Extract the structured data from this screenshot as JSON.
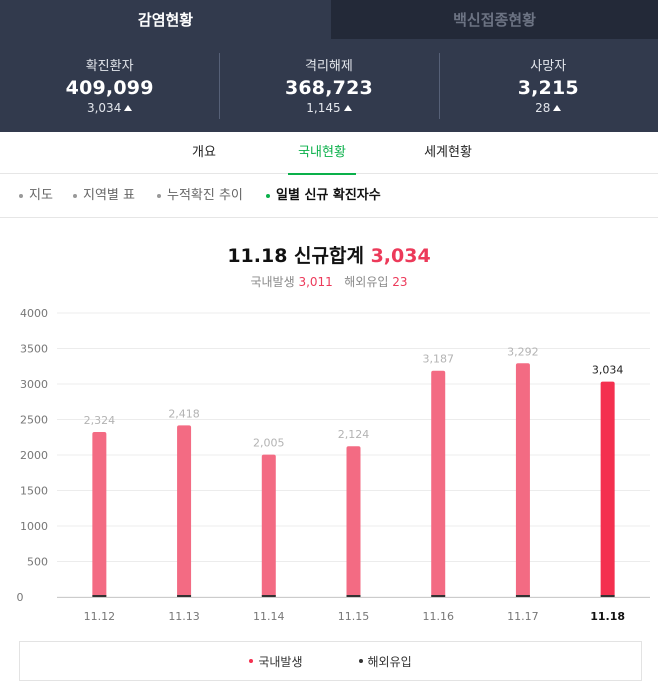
{
  "top_tabs": [
    {
      "label": "감염현황",
      "active": true
    },
    {
      "label": "백신접종현황",
      "active": false
    }
  ],
  "stats": [
    {
      "label": "확진환자",
      "value": "409,099",
      "delta": "3,034"
    },
    {
      "label": "격리해제",
      "value": "368,723",
      "delta": "1,145"
    },
    {
      "label": "사망자",
      "value": "3,215",
      "delta": "28"
    }
  ],
  "sub_tabs": [
    {
      "label": "개요",
      "active": false
    },
    {
      "label": "국내현황",
      "active": true
    },
    {
      "label": "세계현황",
      "active": false
    }
  ],
  "filters": [
    {
      "label": "지도",
      "active": false
    },
    {
      "label": "지역별 표",
      "active": false
    },
    {
      "label": "누적확진 추이",
      "active": false
    },
    {
      "label": "일별 신규 확진자수",
      "active": true
    }
  ],
  "chart_header": {
    "title_prefix": "11.18 신규합계",
    "total": "3,034",
    "domestic_label": "국내발생",
    "domestic_value": "3,011",
    "overseas_label": "해외유입",
    "overseas_value": "23"
  },
  "legend": {
    "domestic": "국내발생",
    "overseas": "해외유입"
  },
  "colors": {
    "accent_green": "#0ab04a",
    "bar": "#f36b83",
    "bar_highlight": "#f4304f",
    "overseas": "#333333",
    "header_bg": "#323a4d"
  },
  "chart_data": {
    "type": "bar",
    "categories": [
      "11.12",
      "11.13",
      "11.14",
      "11.15",
      "11.16",
      "11.17",
      "11.18"
    ],
    "series": [
      {
        "name": "국내발생",
        "values": [
          null,
          null,
          null,
          null,
          null,
          null,
          3011
        ]
      },
      {
        "name": "해외유입",
        "values": [
          null,
          null,
          null,
          null,
          null,
          null,
          23
        ]
      }
    ],
    "totals": [
      2324,
      2418,
      2005,
      2124,
      3187,
      3292,
      3034
    ],
    "total_labels": [
      "2,324",
      "2,418",
      "2,005",
      "2,124",
      "3,187",
      "3,292",
      "3,034"
    ],
    "yticks": [
      0,
      500,
      1000,
      1500,
      2000,
      2500,
      3000,
      3500,
      4000
    ],
    "ylim": [
      0,
      4000
    ],
    "highlight_index": 6,
    "grid": true,
    "legend_position": "bottom"
  }
}
